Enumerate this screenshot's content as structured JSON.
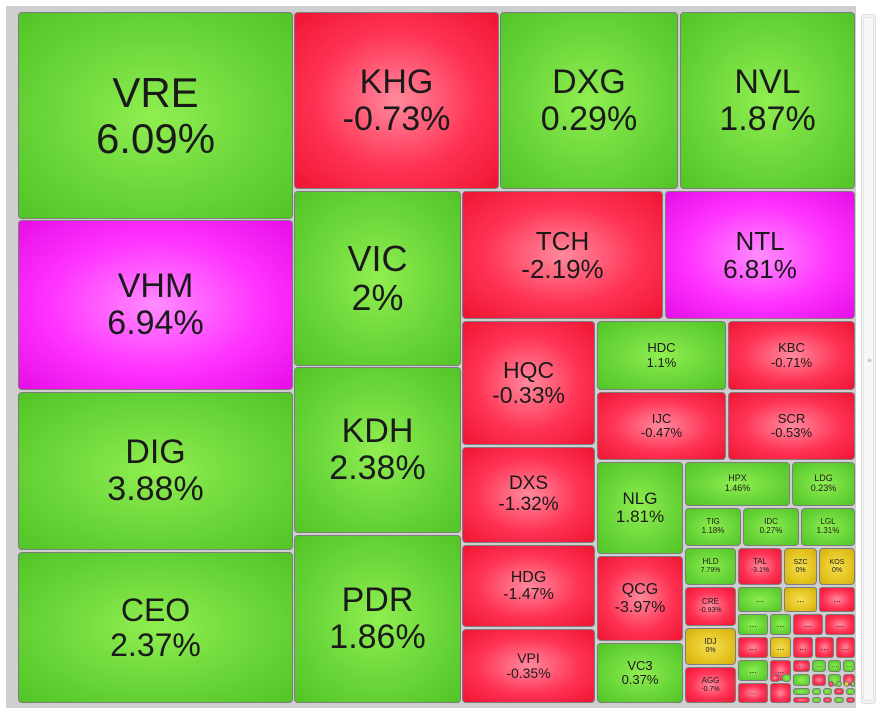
{
  "colors": {
    "up": "#6ad63a",
    "down": "#ff3355",
    "ceiling": "#ff33ff",
    "unchanged": "#e5c420"
  },
  "scrollbar": {
    "grip_icon": "grip-lines-icon"
  },
  "tiles": [
    {
      "symbol": "VRE",
      "change": "6.09%",
      "status": "up"
    },
    {
      "symbol": "VHM",
      "change": "6.94%",
      "status": "ceiling"
    },
    {
      "symbol": "DIG",
      "change": "3.88%",
      "status": "up"
    },
    {
      "symbol": "CEO",
      "change": "2.37%",
      "status": "up"
    },
    {
      "symbol": "KHG",
      "change": "-0.73%",
      "status": "down"
    },
    {
      "symbol": "DXG",
      "change": "0.29%",
      "status": "up"
    },
    {
      "symbol": "NVL",
      "change": "1.87%",
      "status": "up"
    },
    {
      "symbol": "VIC",
      "change": "2%",
      "status": "up"
    },
    {
      "symbol": "KDH",
      "change": "2.38%",
      "status": "up"
    },
    {
      "symbol": "PDR",
      "change": "1.86%",
      "status": "up"
    },
    {
      "symbol": "TCH",
      "change": "-2.19%",
      "status": "down"
    },
    {
      "symbol": "NTL",
      "change": "6.81%",
      "status": "ceiling"
    },
    {
      "symbol": "HQC",
      "change": "-0.33%",
      "status": "down"
    },
    {
      "symbol": "DXS",
      "change": "-1.32%",
      "status": "down"
    },
    {
      "symbol": "HDG",
      "change": "-1.47%",
      "status": "down"
    },
    {
      "symbol": "VPI",
      "change": "-0.35%",
      "status": "down"
    },
    {
      "symbol": "HDC",
      "change": "1.1%",
      "status": "up"
    },
    {
      "symbol": "KBC",
      "change": "-0.71%",
      "status": "down"
    },
    {
      "symbol": "IJC",
      "change": "-0.47%",
      "status": "down"
    },
    {
      "symbol": "SCR",
      "change": "-0.53%",
      "status": "down"
    },
    {
      "symbol": "NLG",
      "change": "1.81%",
      "status": "up"
    },
    {
      "symbol": "QCG",
      "change": "-3.97%",
      "status": "down"
    },
    {
      "symbol": "VC3",
      "change": "0.37%",
      "status": "up"
    },
    {
      "symbol": "HPX",
      "change": "1.46%",
      "status": "up"
    },
    {
      "symbol": "LDG",
      "change": "0.23%",
      "status": "up"
    },
    {
      "symbol": "TIG",
      "change": "1.18%",
      "status": "up"
    },
    {
      "symbol": "IDC",
      "change": "0.27%",
      "status": "up"
    },
    {
      "symbol": "LGL",
      "change": "1.31%",
      "status": "up"
    },
    {
      "symbol": "HLD",
      "change": "7.79%",
      "status": "up"
    },
    {
      "symbol": "TAL",
      "change": "-3.1%",
      "status": "down"
    },
    {
      "symbol": "SZC",
      "change": "0%",
      "status": "unchanged"
    },
    {
      "symbol": "KOS",
      "change": "0%",
      "status": "unchanged"
    },
    {
      "symbol": "CRE",
      "change": "-0.93%",
      "status": "down"
    },
    {
      "symbol": "IDJ",
      "change": "0%",
      "status": "unchanged"
    },
    {
      "symbol": "AGG",
      "change": "-0.7%",
      "status": "down"
    }
  ],
  "small_tiles": [
    {
      "label": "...",
      "status": "up"
    },
    {
      "label": "...",
      "status": "unchanged"
    },
    {
      "label": "...",
      "status": "down"
    },
    {
      "label": "...",
      "status": "up"
    },
    {
      "label": "...",
      "status": "up"
    },
    {
      "label": "...",
      "status": "down"
    },
    {
      "label": "...",
      "status": "down"
    },
    {
      "label": "...",
      "status": "down"
    },
    {
      "label": "...",
      "status": "unchanged"
    },
    {
      "label": "...",
      "status": "down"
    },
    {
      "label": "...",
      "status": "down"
    },
    {
      "label": "...",
      "status": "down"
    },
    {
      "label": "...",
      "status": "up"
    },
    {
      "label": "...",
      "status": "down"
    },
    {
      "label": "...",
      "status": "down"
    },
    {
      "label": "...",
      "status": "up"
    },
    {
      "label": "...",
      "status": "up"
    },
    {
      "label": "...",
      "status": "up"
    },
    {
      "label": "...",
      "status": "down"
    },
    {
      "label": "",
      "status": "down"
    },
    {
      "label": "",
      "status": "up"
    },
    {
      "label": "",
      "status": "down"
    },
    {
      "label": "",
      "status": "up"
    },
    {
      "label": "",
      "status": "down"
    },
    {
      "label": "",
      "status": "up"
    },
    {
      "label": "",
      "status": "down"
    },
    {
      "label": "",
      "status": "up"
    },
    {
      "label": "",
      "status": "up"
    },
    {
      "label": "",
      "status": "down"
    },
    {
      "label": "",
      "status": "up"
    },
    {
      "label": "",
      "status": "up"
    },
    {
      "label": "",
      "status": "down"
    },
    {
      "label": "",
      "status": "up"
    },
    {
      "label": "",
      "status": "down"
    },
    {
      "label": "",
      "status": "down"
    },
    {
      "label": "",
      "status": "up"
    },
    {
      "label": "",
      "status": "unchanged"
    },
    {
      "label": "",
      "status": "up"
    },
    {
      "label": "",
      "status": "down"
    },
    {
      "label": "",
      "status": "up"
    },
    {
      "label": "",
      "status": "up"
    },
    {
      "label": "",
      "status": "down"
    },
    {
      "label": "",
      "status": "up"
    },
    {
      "label": "",
      "status": "up"
    }
  ]
}
